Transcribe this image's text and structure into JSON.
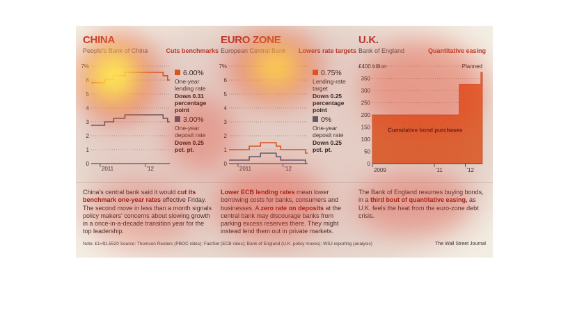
{
  "china": {
    "title": "CHINA",
    "subtitle": "People's Bank of China",
    "action": "Cuts benchmarks",
    "lending_value": "6.00%",
    "lending_desc": "One-year lending rate",
    "lending_change": "Down 0.31 percentage point",
    "deposit_value": "3.00%",
    "deposit_desc": "One-year deposit rate",
    "deposit_change": "Down 0.25 pct. pt.",
    "body_pre": "China's central bank said it would ",
    "body_bold": "cut its benchmark one-year rates",
    "body_post": " effective Friday. The second move in less than a month signals policy makers' concerns about slowing growth in a once-in-a-decade transition year for the top leadership."
  },
  "euro": {
    "title": "EURO ZONE",
    "subtitle": "European Central Bank",
    "action": "Lowers rate targets",
    "lending_value": "0.75%",
    "lending_desc": "Lending-rate target",
    "lending_change": "Down 0.25 percentage point",
    "deposit_value": "0%",
    "deposit_desc": "One-year deposit rate",
    "deposit_change": "Down 0.25 pct. pt.",
    "body_bold1": "Lower ECB lending rates",
    "body_mid1": " mean lower borrowing costs for banks, consumers and businesses. A ",
    "body_bold2": "zero rate on deposits",
    "body_post": " at the central bank may discourage banks from parking excess reserves there.  They might instead lend them out in private markets."
  },
  "uk": {
    "title": "U.K.",
    "subtitle": "Bank of England",
    "action": "Quantitative easing",
    "planned_label": "Planned",
    "area_label": "Cumulative bond purchases",
    "body_pre": "The Bank of England resumes buying bonds, in a ",
    "body_bold": "third bout of quantitative easing,",
    "body_post": " as U.K. feels the heat from the euro-zone debt crisis."
  },
  "footnote": "Note: £1=$1.5520    Source: Thomson Reuters (PBOC rates); FactSet (ECB rates); Bank of England (U.K. policy moves); WSJ reporting (analysis)",
  "credit": "The Wall Street Journal",
  "colors": {
    "lending": "#e0601f",
    "deposit": "#5a6578",
    "area": "#e8713a",
    "accent": "#c0392b"
  },
  "chart_data": [
    {
      "type": "line",
      "title": "CHINA",
      "ylim": [
        0,
        7
      ],
      "yticks": [
        "0",
        "1",
        "2",
        "3",
        "4",
        "5",
        "6",
        "7%"
      ],
      "xticks": [
        "2011",
        "'12"
      ],
      "x": [
        2010.8,
        2011.1,
        2011.3,
        2011.55,
        2011.9,
        2012.4,
        2012.5,
        2012.55
      ],
      "series": [
        {
          "name": "One-year lending rate",
          "values": [
            5.81,
            6.06,
            6.31,
            6.56,
            6.56,
            6.31,
            6.0,
            6.0
          ]
        },
        {
          "name": "One-year deposit rate",
          "values": [
            2.75,
            3.0,
            3.25,
            3.5,
            3.5,
            3.25,
            3.0,
            3.0
          ]
        }
      ]
    },
    {
      "type": "line",
      "title": "EURO ZONE",
      "ylim": [
        0,
        7
      ],
      "yticks": [
        "0",
        "1",
        "2",
        "3",
        "4",
        "5",
        "6",
        "7%"
      ],
      "xticks": [
        "2011",
        "'12"
      ],
      "x": [
        2010.8,
        2011.25,
        2011.5,
        2011.85,
        2011.95,
        2012.5,
        2012.55
      ],
      "series": [
        {
          "name": "Lending-rate target",
          "values": [
            1.0,
            1.25,
            1.5,
            1.25,
            1.0,
            0.75,
            0.75
          ]
        },
        {
          "name": "One-year deposit rate",
          "values": [
            0.25,
            0.5,
            0.75,
            0.5,
            0.25,
            0.0,
            0.0
          ]
        }
      ]
    },
    {
      "type": "area",
      "title": "U.K.",
      "ylabel": "£400 billion",
      "ylim": [
        0,
        400
      ],
      "yticks": [
        "0",
        "50",
        "100",
        "150",
        "200",
        "250",
        "300",
        "350",
        "£400 billion"
      ],
      "xticks": [
        "2009",
        "'11",
        "'12"
      ],
      "x": [
        2009.0,
        2011.8,
        2012.5,
        2012.55
      ],
      "series": [
        {
          "name": "Cumulative bond purchases",
          "values": [
            200,
            325,
            375,
            375
          ]
        }
      ]
    }
  ]
}
